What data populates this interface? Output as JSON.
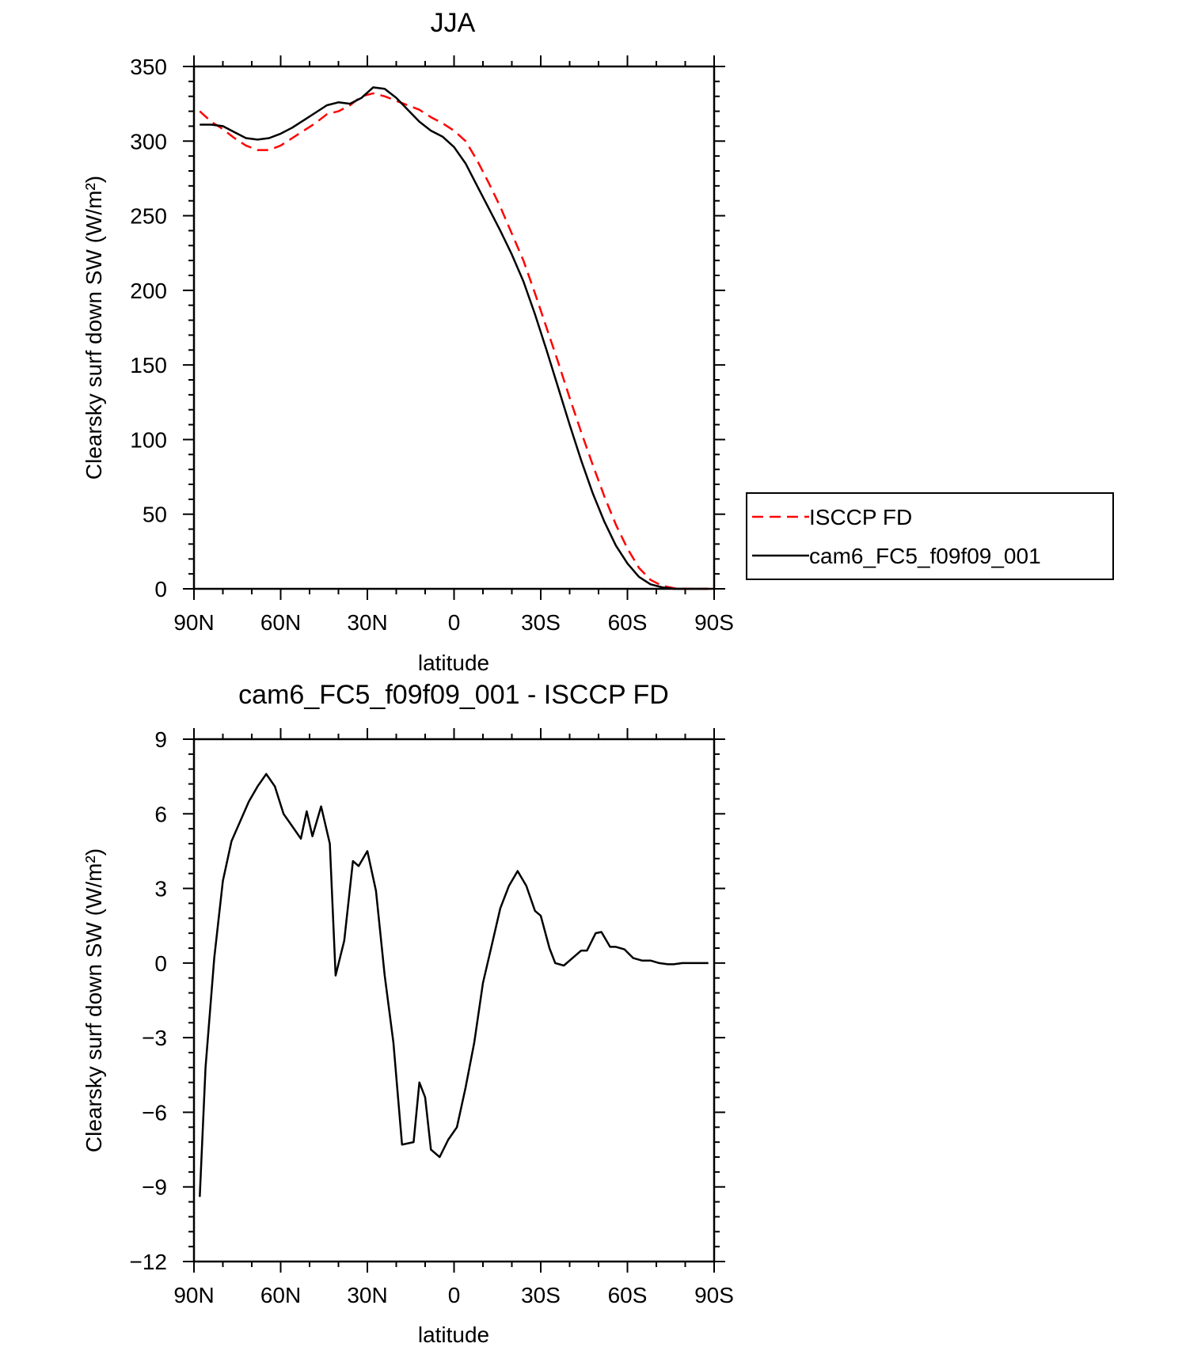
{
  "chart_data": [
    {
      "type": "line",
      "title": "JJA",
      "xlabel": "latitude",
      "ylabel": "Clearsky surf down SW (W/m²)",
      "xlim": [
        90,
        -90
      ],
      "ylim": [
        0,
        350
      ],
      "x_ticks": [
        {
          "value": 90,
          "label": "90N"
        },
        {
          "value": 60,
          "label": "60N"
        },
        {
          "value": 30,
          "label": "30N"
        },
        {
          "value": 0,
          "label": "0"
        },
        {
          "value": -30,
          "label": "30S"
        },
        {
          "value": -60,
          "label": "60S"
        },
        {
          "value": -90,
          "label": "90S"
        }
      ],
      "y_ticks": [
        {
          "value": 0,
          "label": "0"
        },
        {
          "value": 50,
          "label": "50"
        },
        {
          "value": 100,
          "label": "100"
        },
        {
          "value": 150,
          "label": "150"
        },
        {
          "value": 200,
          "label": "200"
        },
        {
          "value": 250,
          "label": "250"
        },
        {
          "value": 300,
          "label": "300"
        },
        {
          "value": 350,
          "label": "350"
        }
      ],
      "legend_position": "right",
      "series": [
        {
          "name": "ISCCP FD",
          "color": "#ff0000",
          "dash": "dashed",
          "points": [
            [
              88,
              320
            ],
            [
              84,
              313
            ],
            [
              80,
              308
            ],
            [
              76,
              302
            ],
            [
              72,
              297
            ],
            [
              68,
              294
            ],
            [
              64,
              294
            ],
            [
              60,
              297
            ],
            [
              56,
              302
            ],
            [
              52,
              307
            ],
            [
              48,
              312
            ],
            [
              44,
              318
            ],
            [
              40,
              320
            ],
            [
              36,
              324
            ],
            [
              32,
              330
            ],
            [
              28,
              332
            ],
            [
              24,
              330
            ],
            [
              20,
              327
            ],
            [
              16,
              324
            ],
            [
              12,
              321
            ],
            [
              8,
              316
            ],
            [
              4,
              312
            ],
            [
              0,
              307
            ],
            [
              -4,
              300
            ],
            [
              -8,
              287
            ],
            [
              -12,
              272
            ],
            [
              -16,
              256
            ],
            [
              -20,
              238
            ],
            [
              -24,
              220
            ],
            [
              -28,
              198
            ],
            [
              -32,
              175
            ],
            [
              -36,
              152
            ],
            [
              -40,
              128
            ],
            [
              -44,
              105
            ],
            [
              -48,
              83
            ],
            [
              -52,
              62
            ],
            [
              -56,
              43
            ],
            [
              -60,
              27
            ],
            [
              -64,
              14
            ],
            [
              -68,
              6
            ],
            [
              -72,
              2
            ],
            [
              -76,
              0.5
            ],
            [
              -80,
              0
            ],
            [
              -84,
              0
            ],
            [
              -88,
              0
            ]
          ]
        },
        {
          "name": "cam6_FC5_f09f09_001",
          "color": "#000000",
          "dash": "solid",
          "points": [
            [
              88,
              311
            ],
            [
              84,
              311
            ],
            [
              80,
              310
            ],
            [
              76,
              306
            ],
            [
              72,
              302
            ],
            [
              68,
              301
            ],
            [
              64,
              302
            ],
            [
              60,
              305
            ],
            [
              56,
              309
            ],
            [
              52,
              314
            ],
            [
              48,
              319
            ],
            [
              44,
              324
            ],
            [
              40,
              326
            ],
            [
              36,
              325
            ],
            [
              32,
              329
            ],
            [
              28,
              336
            ],
            [
              24,
              335
            ],
            [
              20,
              329
            ],
            [
              16,
              321
            ],
            [
              12,
              313
            ],
            [
              8,
              307
            ],
            [
              4,
              303
            ],
            [
              0,
              296
            ],
            [
              -4,
              285
            ],
            [
              -8,
              270
            ],
            [
              -12,
              255
            ],
            [
              -16,
              240
            ],
            [
              -20,
              224
            ],
            [
              -24,
              206
            ],
            [
              -28,
              184
            ],
            [
              -32,
              160
            ],
            [
              -36,
              135
            ],
            [
              -40,
              110
            ],
            [
              -44,
              86
            ],
            [
              -48,
              64
            ],
            [
              -52,
              45
            ],
            [
              -56,
              29
            ],
            [
              -60,
              17
            ],
            [
              -64,
              8
            ],
            [
              -68,
              3
            ],
            [
              -72,
              1
            ],
            [
              -76,
              0
            ],
            [
              -80,
              0
            ],
            [
              -84,
              0
            ],
            [
              -88,
              0
            ]
          ]
        }
      ]
    },
    {
      "type": "line",
      "title": "cam6_FC5_f09f09_001 - ISCCP FD",
      "xlabel": "latitude",
      "ylabel": "Clearsky surf down SW (W/m²)",
      "xlim": [
        90,
        -90
      ],
      "ylim": [
        -12,
        9
      ],
      "x_ticks": [
        {
          "value": 90,
          "label": "90N"
        },
        {
          "value": 60,
          "label": "60N"
        },
        {
          "value": 30,
          "label": "30N"
        },
        {
          "value": 0,
          "label": "0"
        },
        {
          "value": -30,
          "label": "30S"
        },
        {
          "value": -60,
          "label": "60S"
        },
        {
          "value": -90,
          "label": "90S"
        }
      ],
      "y_ticks": [
        {
          "value": -12,
          "label": "−12"
        },
        {
          "value": -9,
          "label": "−9"
        },
        {
          "value": -6,
          "label": "−6"
        },
        {
          "value": -3,
          "label": "−3"
        },
        {
          "value": 0,
          "label": "0"
        },
        {
          "value": 3,
          "label": "3"
        },
        {
          "value": 6,
          "label": "6"
        },
        {
          "value": 9,
          "label": "9"
        }
      ],
      "series": [
        {
          "color": "#000000",
          "dash": "solid",
          "points": [
            [
              88,
              -9.4
            ],
            [
              86,
              -4.2
            ],
            [
              83,
              0.2
            ],
            [
              80,
              3.3
            ],
            [
              77,
              4.9
            ],
            [
              74,
              5.7
            ],
            [
              71,
              6.5
            ],
            [
              68,
              7.1
            ],
            [
              65,
              7.6
            ],
            [
              62,
              7.1
            ],
            [
              59,
              6.0
            ],
            [
              56,
              5.5
            ],
            [
              53,
              5.0
            ],
            [
              51,
              6.1
            ],
            [
              49,
              5.1
            ],
            [
              46,
              6.3
            ],
            [
              43,
              4.8
            ],
            [
              41,
              -0.5
            ],
            [
              38,
              0.9
            ],
            [
              35,
              4.1
            ],
            [
              33,
              3.9
            ],
            [
              30,
              4.5
            ],
            [
              27,
              2.9
            ],
            [
              24,
              -0.5
            ],
            [
              21,
              -3.2
            ],
            [
              18,
              -7.3
            ],
            [
              14,
              -7.2
            ],
            [
              12,
              -4.8
            ],
            [
              10,
              -5.4
            ],
            [
              8,
              -7.5
            ],
            [
              5,
              -7.8
            ],
            [
              2,
              -7.1
            ],
            [
              -1,
              -6.6
            ],
            [
              -4,
              -5.0
            ],
            [
              -7,
              -3.2
            ],
            [
              -10,
              -0.8
            ],
            [
              -13,
              0.7
            ],
            [
              -16,
              2.2
            ],
            [
              -19,
              3.1
            ],
            [
              -22,
              3.7
            ],
            [
              -25,
              3.1
            ],
            [
              -28,
              2.1
            ],
            [
              -30,
              1.9
            ],
            [
              -33,
              0.6
            ],
            [
              -35,
              0.0
            ],
            [
              -38,
              -0.1
            ],
            [
              -41,
              0.2
            ],
            [
              -44,
              0.5
            ],
            [
              -46,
              0.5
            ],
            [
              -49,
              1.2
            ],
            [
              -51,
              1.25
            ],
            [
              -54,
              0.65
            ],
            [
              -56,
              0.65
            ],
            [
              -59,
              0.55
            ],
            [
              -62,
              0.2
            ],
            [
              -65,
              0.1
            ],
            [
              -68,
              0.1
            ],
            [
              -71,
              0.0
            ],
            [
              -74,
              -0.05
            ],
            [
              -76,
              -0.05
            ],
            [
              -79,
              0.0
            ],
            [
              -83,
              0.0
            ],
            [
              -88,
              0.0
            ]
          ]
        }
      ]
    }
  ]
}
